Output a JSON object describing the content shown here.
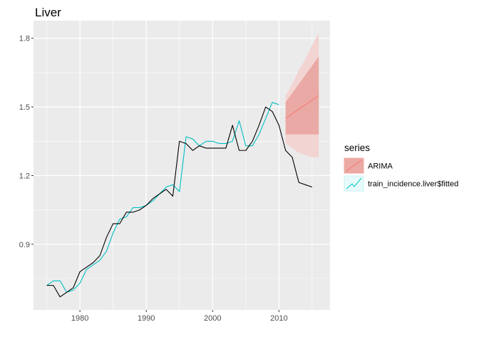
{
  "chart_data": {
    "type": "line",
    "title": "Liver",
    "xlabel": "",
    "ylabel": "",
    "xlim": [
      1973,
      2017.7
    ],
    "ylim": [
      0.613,
      1.877
    ],
    "x_ticks": [
      1980,
      1990,
      2000,
      2010
    ],
    "y_ticks": [
      0.9,
      1.2,
      1.5,
      1.8
    ],
    "y_tick_labels": [
      "0.9",
      "1.2",
      "1.5",
      "1.8"
    ],
    "grid": true,
    "legend": {
      "title": "series",
      "position": "right"
    },
    "colors": {
      "panel_bg": "#ebebeb",
      "grid": "#ffffff",
      "actual": "#000000",
      "arima": "#f8766d",
      "fitted": "#00bfc4",
      "fan_80": "#eaa9a4",
      "fan_95": "#f2d4d2"
    },
    "series": [
      {
        "values": [
          [
            1975,
            0.72
          ],
          [
            1976,
            0.72
          ],
          [
            1977,
            0.67
          ],
          [
            1978,
            0.69
          ],
          [
            1979,
            0.71
          ],
          [
            1980,
            0.78
          ],
          [
            1981,
            0.8
          ],
          [
            1982,
            0.82
          ],
          [
            1983,
            0.85
          ],
          [
            1984,
            0.93
          ],
          [
            1985,
            0.99
          ],
          [
            1986,
            0.99
          ],
          [
            1987,
            1.04
          ],
          [
            1988,
            1.04
          ],
          [
            1989,
            1.05
          ],
          [
            1990,
            1.07
          ],
          [
            1991,
            1.1
          ],
          [
            1992,
            1.12
          ],
          [
            1993,
            1.14
          ],
          [
            1994,
            1.11
          ],
          [
            1995,
            1.35
          ],
          [
            1996,
            1.34
          ],
          [
            1997,
            1.31
          ],
          [
            1998,
            1.33
          ],
          [
            1999,
            1.32
          ],
          [
            2000,
            1.32
          ],
          [
            2001,
            1.32
          ],
          [
            2002,
            1.32
          ],
          [
            2003,
            1.42
          ],
          [
            2004,
            1.31
          ],
          [
            2005,
            1.31
          ],
          [
            2006,
            1.35
          ],
          [
            2007,
            1.42
          ],
          [
            2008,
            1.5
          ],
          [
            2009,
            1.48
          ],
          [
            2010,
            1.42
          ],
          [
            2011,
            1.31
          ],
          [
            2012,
            1.28
          ],
          [
            2013,
            1.17
          ],
          [
            2014,
            1.16
          ],
          [
            2015,
            1.15
          ]
        ]
      },
      {
        "name": "train_incidence.liver$fitted",
        "values": [
          [
            1975,
            0.72
          ],
          [
            1976,
            0.74
          ],
          [
            1977,
            0.74
          ],
          [
            1978,
            0.69
          ],
          [
            1979,
            0.7
          ],
          [
            1980,
            0.73
          ],
          [
            1981,
            0.79
          ],
          [
            1982,
            0.81
          ],
          [
            1983,
            0.83
          ],
          [
            1984,
            0.87
          ],
          [
            1985,
            0.95
          ],
          [
            1986,
            1.01
          ],
          [
            1987,
            1.02
          ],
          [
            1988,
            1.06
          ],
          [
            1989,
            1.06
          ],
          [
            1990,
            1.07
          ],
          [
            1991,
            1.09
          ],
          [
            1992,
            1.12
          ],
          [
            1993,
            1.15
          ],
          [
            1994,
            1.16
          ],
          [
            1995,
            1.13
          ],
          [
            1996,
            1.37
          ],
          [
            1997,
            1.36
          ],
          [
            1998,
            1.33
          ],
          [
            1999,
            1.35
          ],
          [
            2000,
            1.35
          ],
          [
            2001,
            1.34
          ],
          [
            2002,
            1.34
          ],
          [
            2003,
            1.35
          ],
          [
            2004,
            1.44
          ],
          [
            2005,
            1.33
          ],
          [
            2006,
            1.33
          ],
          [
            2007,
            1.38
          ],
          [
            2008,
            1.45
          ],
          [
            2009,
            1.52
          ],
          [
            2010,
            1.51
          ]
        ]
      },
      {
        "name": "ARIMA",
        "values": [
          [
            2011,
            1.45
          ],
          [
            2012,
            1.47
          ],
          [
            2013,
            1.49
          ],
          [
            2014,
            1.51
          ],
          [
            2015,
            1.53
          ],
          [
            2016,
            1.55
          ]
        ],
        "interval_80": [
          [
            2011,
            1.38,
            1.52
          ],
          [
            2012,
            1.38,
            1.56
          ],
          [
            2013,
            1.38,
            1.6
          ],
          [
            2014,
            1.38,
            1.64
          ],
          [
            2015,
            1.38,
            1.68
          ],
          [
            2016,
            1.38,
            1.72
          ]
        ],
        "interval_95": [
          [
            2011,
            1.34,
            1.55
          ],
          [
            2012,
            1.32,
            1.6
          ],
          [
            2013,
            1.3,
            1.66
          ],
          [
            2014,
            1.29,
            1.71
          ],
          [
            2015,
            1.28,
            1.77
          ],
          [
            2016,
            1.28,
            1.82
          ]
        ]
      }
    ]
  }
}
